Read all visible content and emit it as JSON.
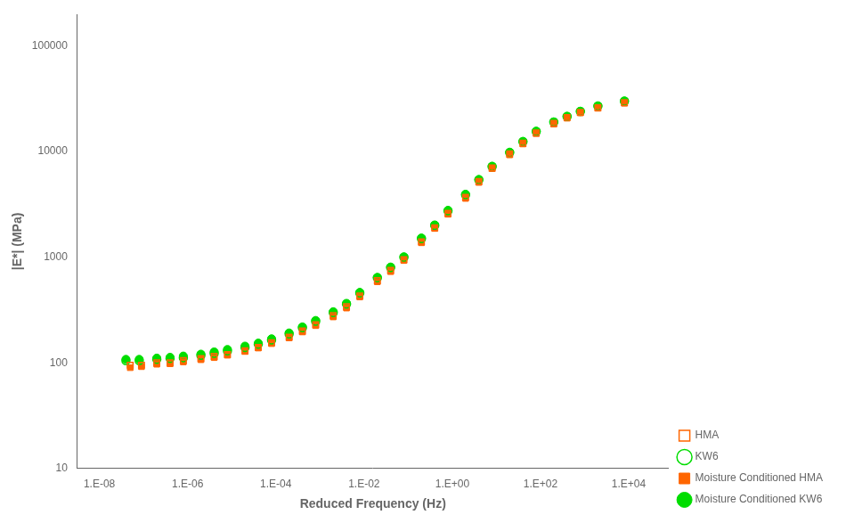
{
  "chart_data": {
    "type": "scatter",
    "xlabel": "Reduced Frequency (Hz)",
    "ylabel": "|E*| (MPa)",
    "log": true,
    "grid": false,
    "legend": "lower right",
    "xlim": [
      3.1622776601683795e-09,
      79432.82347242822
    ],
    "ylim": [
      10,
      199526.23149688827
    ],
    "xticks": [
      {
        "value": 1e-08,
        "label": "1.E-08"
      },
      {
        "value": 1e-06,
        "label": "1.E-06"
      },
      {
        "value": 0.0001,
        "label": "1.E-04"
      },
      {
        "value": 0.01,
        "label": "1.E-02"
      },
      {
        "value": 1,
        "label": "1.E+00"
      },
      {
        "value": 100,
        "label": "1.E+02"
      },
      {
        "value": 10000,
        "label": "1.E+04"
      }
    ],
    "yticks": [
      10,
      100,
      1000,
      10000,
      100000
    ],
    "series": [
      {
        "name": "HMA",
        "color": "#FF6600",
        "marker": "square_open",
        "x": [
          5e-08,
          9e-08,
          2e-07,
          4e-07,
          8e-07,
          2e-06,
          4e-06,
          8e-06,
          2e-05,
          4e-05,
          8e-05,
          0.0002,
          0.0004,
          0.0008,
          0.002,
          0.004,
          0.008,
          0.02,
          0.04,
          0.08,
          0.2,
          0.4,
          0.8,
          2,
          4,
          8,
          20,
          40,
          80,
          200,
          400,
          800,
          2000,
          8000
        ],
        "values": [
          95,
          95,
          100,
          100,
          105,
          110,
          115,
          120,
          130,
          140,
          155,
          175,
          200,
          230,
          280,
          340,
          430,
          600,
          750,
          950,
          1400,
          1900,
          2600,
          3700,
          5200,
          7000,
          9500,
          12000,
          15000,
          18500,
          21000,
          23500,
          26000,
          29000
        ]
      },
      {
        "name": "KW6",
        "color": "#00DD00",
        "marker": "circle_open",
        "x": [
          4e-08,
          8e-08,
          2e-07,
          4e-07,
          8e-07,
          2e-06,
          4e-06,
          8e-06,
          2e-05,
          4e-05,
          8e-05,
          0.0002,
          0.0004,
          0.0008,
          0.002,
          0.004,
          0.008,
          0.02,
          0.04,
          0.08,
          0.2,
          0.4,
          0.8,
          2,
          4,
          8,
          20,
          40,
          80,
          200,
          400,
          800,
          2000,
          8000
        ],
        "values": [
          105,
          105,
          108,
          110,
          112,
          118,
          123,
          130,
          140,
          150,
          165,
          188,
          215,
          248,
          300,
          360,
          460,
          640,
          800,
          1000,
          1500,
          2000,
          2750,
          3900,
          5400,
          7200,
          9800,
          12400,
          15500,
          19000,
          21500,
          24000,
          27000,
          30000
        ]
      },
      {
        "name": "Moisture Conditioned HMA",
        "color": "#FF6600",
        "marker": "square",
        "x": [
          5e-08,
          9e-08,
          2e-07,
          4e-07,
          8e-07,
          2e-06,
          4e-06,
          8e-06,
          2e-05,
          4e-05,
          8e-05,
          0.0002,
          0.0004,
          0.0008,
          0.002,
          0.004,
          0.008,
          0.02,
          0.04,
          0.08,
          0.2,
          0.4,
          0.8,
          2,
          4,
          8,
          20,
          40,
          80,
          200,
          400,
          800,
          2000,
          8000
        ],
        "values": [
          90,
          92,
          97,
          98,
          102,
          107,
          112,
          118,
          128,
          138,
          152,
          172,
          196,
          225,
          272,
          330,
          420,
          585,
          730,
          930,
          1370,
          1870,
          2550,
          3600,
          5100,
          6900,
          9300,
          11800,
          14800,
          18200,
          20700,
          23200,
          25700,
          28700
        ]
      },
      {
        "name": "Moisture Conditioned KW6",
        "color": "#00DD00",
        "marker": "circle",
        "x": [
          4e-08,
          8e-08,
          2e-07,
          4e-07,
          8e-07,
          2e-06,
          4e-06,
          8e-06,
          2e-05,
          4e-05,
          8e-05,
          0.0002,
          0.0004,
          0.0008,
          0.002,
          0.004,
          0.008,
          0.02,
          0.04,
          0.08,
          0.2,
          0.4,
          0.8,
          2,
          4,
          8,
          20,
          40,
          80,
          200,
          400,
          800,
          2000,
          8000
        ],
        "values": [
          108,
          108,
          111,
          113,
          116,
          121,
          127,
          134,
          144,
          154,
          169,
          192,
          219,
          252,
          305,
          366,
          465,
          645,
          808,
          1010,
          1520,
          2020,
          2780,
          3950,
          5450,
          7280,
          9880,
          12500,
          15600,
          19100,
          21600,
          24100,
          27100,
          30100
        ]
      }
    ]
  }
}
